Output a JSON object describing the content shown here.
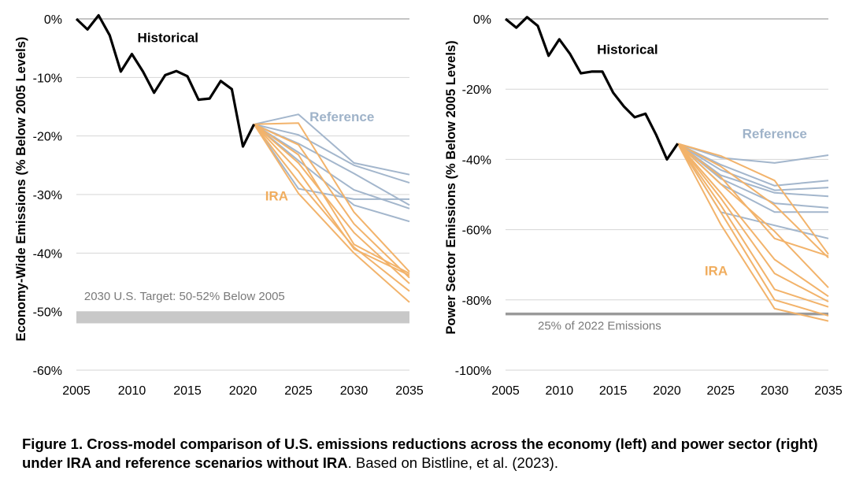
{
  "colors": {
    "historical": "#000000",
    "reference": "#a3b6cc",
    "ira": "#f2b36b",
    "target": "#c8c8c8",
    "target_line": "#9a9a9a",
    "gridline": "#d6d6d6",
    "axis_text": "#000000"
  },
  "caption": {
    "bold": "Figure 1. Cross-model comparison of U.S. emissions reductions across the economy (left) and power sector (right) under IRA and reference scenarios without IRA",
    "rest": ". Based on Bistline, et al. (2023)."
  },
  "chart_data": [
    {
      "type": "line",
      "ylabel": "Economy-Wide Emissions (% Below 2005 Levels)",
      "xlim": [
        2005,
        2035
      ],
      "ylim": [
        -60,
        0
      ],
      "xticks": [
        "2005",
        "2010",
        "2015",
        "2020",
        "2025",
        "2030",
        "2035"
      ],
      "yticks": [
        "0%",
        "-10%",
        "-20%",
        "-30%",
        "-40%",
        "-50%",
        "-60%"
      ],
      "grid": true,
      "labels": {
        "historical": "Historical",
        "reference": "Reference",
        "ira": "IRA"
      },
      "target": {
        "label": "2030 U.S. Target: 50-52% Below 2005",
        "range": [
          -50,
          -52
        ]
      },
      "historical": {
        "x": [
          2005,
          2006,
          2007,
          2008,
          2009,
          2010,
          2011,
          2012,
          2013,
          2014,
          2015,
          2016,
          2017,
          2018,
          2019,
          2020,
          2021
        ],
        "y": [
          0,
          -1.8,
          0.6,
          -2.8,
          -9.0,
          -6.0,
          -9.0,
          -12.6,
          -9.6,
          -8.9,
          -9.8,
          -13.8,
          -13.6,
          -10.6,
          -12.0,
          -21.8,
          -18.0
        ]
      },
      "reference": [
        {
          "x": [
            2021,
            2025,
            2030,
            2035
          ],
          "y": [
            -18,
            -16.3,
            -24.6,
            -26.6
          ]
        },
        {
          "x": [
            2021,
            2025,
            2030,
            2035
          ],
          "y": [
            -18,
            -19.8,
            -25.0,
            -28.0
          ]
        },
        {
          "x": [
            2021,
            2025,
            2030,
            2035
          ],
          "y": [
            -18,
            -21.3,
            -26.4,
            -31.8
          ]
        },
        {
          "x": [
            2021,
            2025,
            2030,
            2035
          ],
          "y": [
            -18,
            -22.8,
            -29.2,
            -32.4
          ]
        },
        {
          "x": [
            2021,
            2025,
            2030,
            2035
          ],
          "y": [
            -18,
            -24.2,
            -31.8,
            -34.6
          ]
        },
        {
          "x": [
            2021,
            2025,
            2030,
            2035
          ],
          "y": [
            -18,
            -29.0,
            -30.8,
            -30.8
          ]
        }
      ],
      "ira": [
        {
          "x": [
            2021,
            2025,
            2030,
            2035
          ],
          "y": [
            -18,
            -17.8,
            -33.0,
            -43.2
          ]
        },
        {
          "x": [
            2021,
            2025,
            2030,
            2035
          ],
          "y": [
            -18,
            -21.5,
            -35.0,
            -44.2
          ]
        },
        {
          "x": [
            2021,
            2025,
            2030,
            2035
          ],
          "y": [
            -18,
            -23.2,
            -38.5,
            -43.5
          ]
        },
        {
          "x": [
            2021,
            2025,
            2030,
            2035
          ],
          "y": [
            -18,
            -24.6,
            -36.5,
            -45.2
          ]
        },
        {
          "x": [
            2021,
            2025,
            2030,
            2035
          ],
          "y": [
            -18,
            -26.0,
            -39.3,
            -43.8
          ]
        },
        {
          "x": [
            2021,
            2025,
            2030,
            2035
          ],
          "y": [
            -18,
            -27.8,
            -39.0,
            -46.5
          ]
        },
        {
          "x": [
            2021,
            2025,
            2030,
            2035
          ],
          "y": [
            -18,
            -29.8,
            -40.0,
            -48.4
          ]
        }
      ]
    },
    {
      "type": "line",
      "ylabel": "Power Sector Emissions (% Below 2005 Levels)",
      "xlim": [
        2005,
        2035
      ],
      "ylim": [
        -100,
        0
      ],
      "xticks": [
        "2005",
        "2010",
        "2015",
        "2020",
        "2025",
        "2030",
        "2035"
      ],
      "yticks": [
        "0%",
        "-20%",
        "-40%",
        "-60%",
        "-80%",
        "-100%"
      ],
      "grid": true,
      "labels": {
        "historical": "Historical",
        "reference": "Reference",
        "ira": "IRA"
      },
      "target": {
        "label": "25% of 2022 Emissions",
        "value": -84
      },
      "historical": {
        "x": [
          2005,
          2006,
          2007,
          2008,
          2009,
          2010,
          2011,
          2012,
          2013,
          2014,
          2015,
          2016,
          2017,
          2018,
          2019,
          2020,
          2021
        ],
        "y": [
          0,
          -2.5,
          0.5,
          -2.0,
          -10.5,
          -5.8,
          -10.0,
          -15.5,
          -15.0,
          -15.0,
          -21.0,
          -24.9,
          -28.0,
          -27.0,
          -33.0,
          -40.0,
          -35.5
        ]
      },
      "reference": [
        {
          "x": [
            2021,
            2025,
            2030,
            2035
          ],
          "y": [
            -35.5,
            -39.5,
            -41.0,
            -38.8
          ]
        },
        {
          "x": [
            2021,
            2025,
            2030,
            2035
          ],
          "y": [
            -35.5,
            -41.5,
            -47.5,
            -46.0
          ]
        },
        {
          "x": [
            2021,
            2025,
            2030,
            2035
          ],
          "y": [
            -35.5,
            -43.0,
            -48.8,
            -48.0
          ]
        },
        {
          "x": [
            2021,
            2025,
            2030,
            2035
          ],
          "y": [
            -35.5,
            -44.5,
            -49.5,
            -50.5
          ]
        },
        {
          "x": [
            2021,
            2025,
            2030,
            2035
          ],
          "y": [
            -35.5,
            -45.5,
            -52.5,
            -53.8
          ]
        },
        {
          "x": [
            2021,
            2025,
            2030,
            2035
          ],
          "y": [
            -35.5,
            -47.0,
            -55.0,
            -55.0
          ]
        },
        {
          "x": [
            2021,
            2025,
            2030,
            2035
          ],
          "y": [
            -35.5,
            -55.0,
            -58.8,
            -62.5
          ]
        }
      ],
      "ira": [
        {
          "x": [
            2021,
            2025,
            2030,
            2035
          ],
          "y": [
            -35.5,
            -39.0,
            -46.0,
            -67.0
          ]
        },
        {
          "x": [
            2021,
            2025,
            2030,
            2035
          ],
          "y": [
            -35.5,
            -42.0,
            -53.0,
            -68.0
          ]
        },
        {
          "x": [
            2021,
            2025,
            2030,
            2035
          ],
          "y": [
            -35.5,
            -45.0,
            -62.5,
            -67.5
          ]
        },
        {
          "x": [
            2021,
            2025,
            2030,
            2035
          ],
          "y": [
            -35.5,
            -47.0,
            -60.5,
            -76.5
          ]
        },
        {
          "x": [
            2021,
            2025,
            2030,
            2035
          ],
          "y": [
            -35.5,
            -49.5,
            -68.5,
            -79.0
          ]
        },
        {
          "x": [
            2021,
            2025,
            2030,
            2035
          ],
          "y": [
            -35.5,
            -51.0,
            -72.5,
            -80.5
          ]
        },
        {
          "x": [
            2021,
            2025,
            2030,
            2035
          ],
          "y": [
            -35.5,
            -53.0,
            -77.0,
            -82.0
          ]
        },
        {
          "x": [
            2021,
            2025,
            2030,
            2035
          ],
          "y": [
            -35.5,
            -55.0,
            -80.0,
            -84.5
          ]
        },
        {
          "x": [
            2021,
            2025,
            2030,
            2035
          ],
          "y": [
            -35.5,
            -58.5,
            -82.5,
            -86.0
          ]
        }
      ]
    }
  ]
}
